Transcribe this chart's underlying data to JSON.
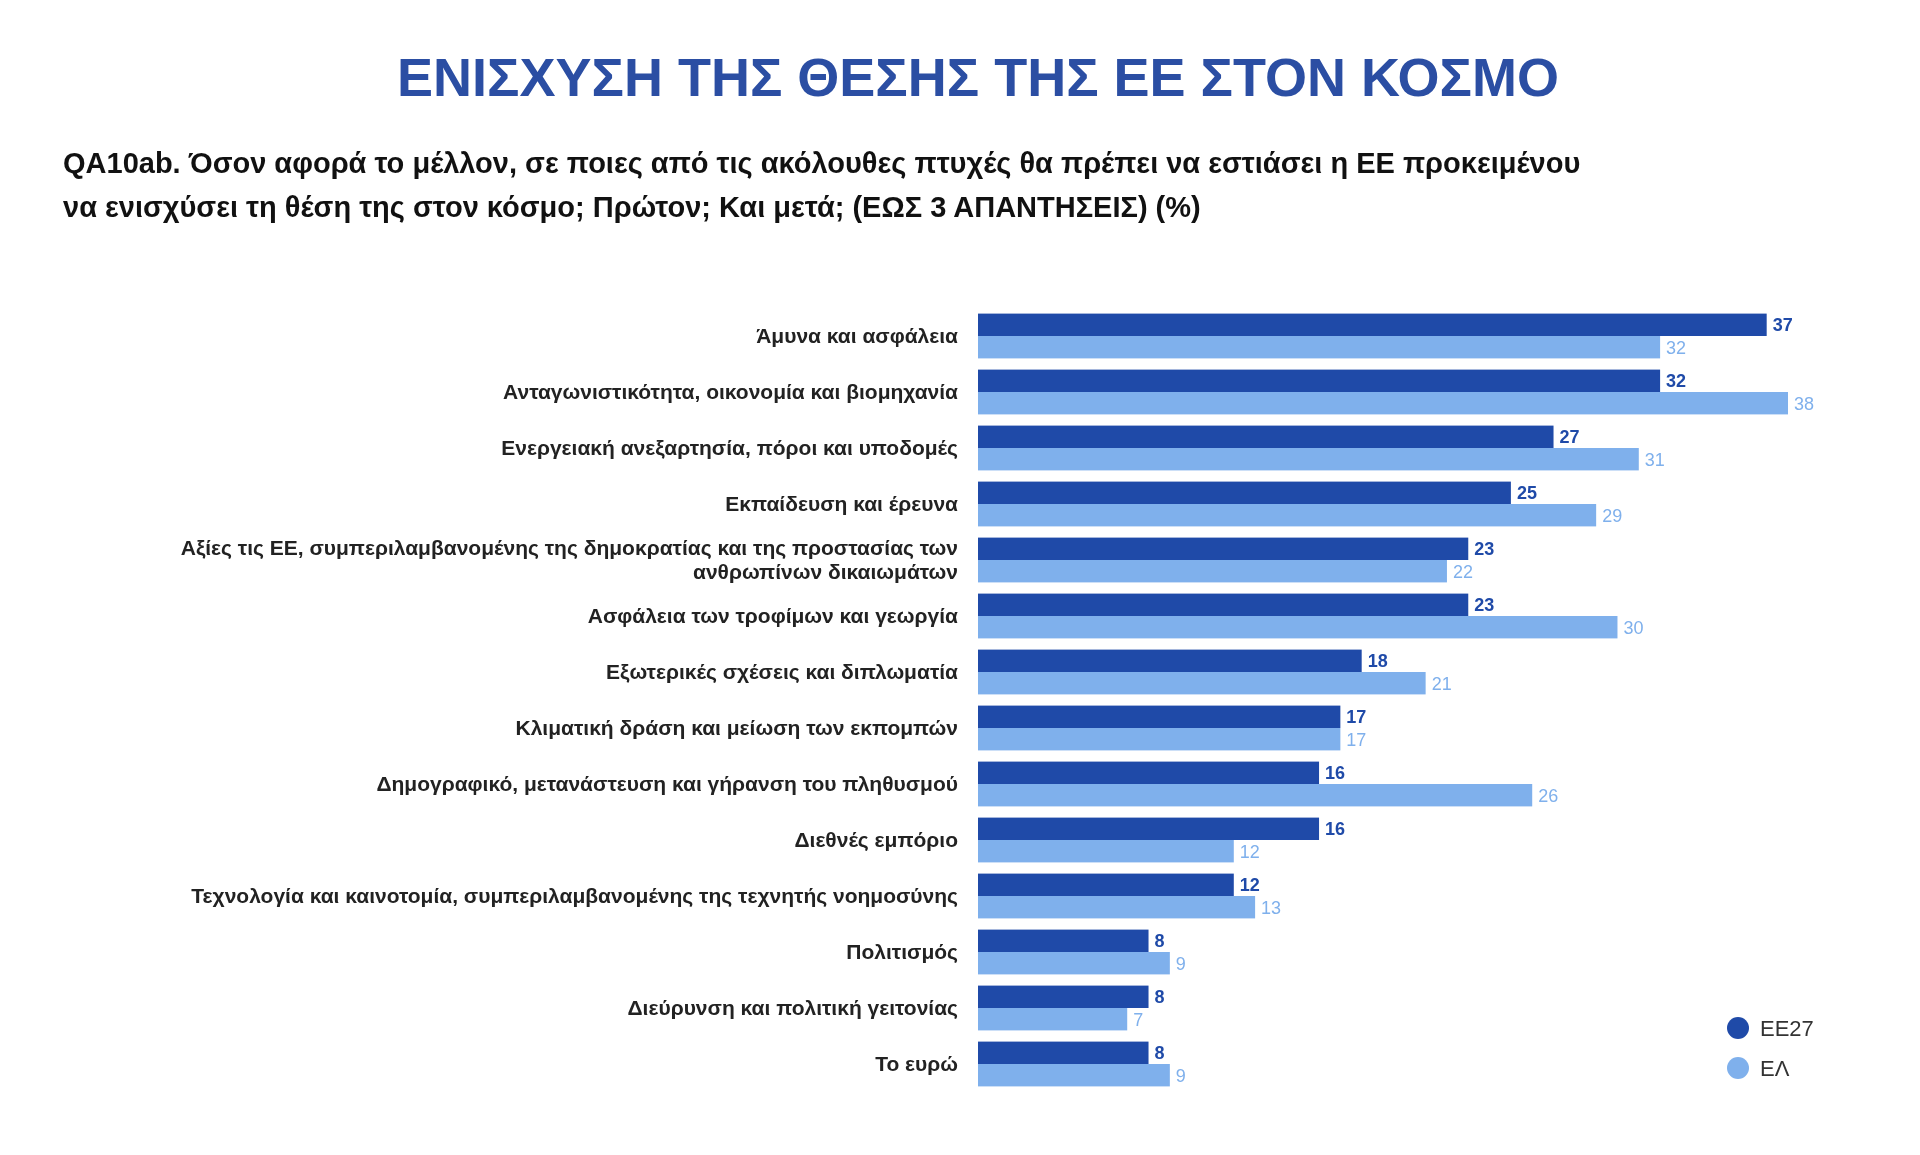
{
  "chart_data": {
    "type": "bar",
    "orientation": "horizontal",
    "title": "ΕΝΙΣΧΥΣΗ ΤΗΣ ΘΕΣΗΣ ΤΗΣ ΕΕ ΣΤΟΝ ΚΟΣΜΟ",
    "subtitle": "QA10ab. Όσον αφορά το μέλλον, σε ποιες από τις ακόλουθες πτυχές θα πρέπει να εστιάσει η ΕΕ προκειμένου να ενισχύσει τη θέση της στον κόσμο; Πρώτον; Και μετά; (ΕΩΣ 3 ΑΠΑΝΤΗΣΕΙΣ) (%)",
    "categories": [
      "Άμυνα και ασφάλεια",
      "Ανταγωνιστικότητα, οικονομία και βιομηχανία",
      "Ενεργειακή ανεξαρτησία, πόροι και υποδομές",
      "Εκπαίδευση και έρευνα",
      "Αξίες τις ΕΕ, συμπεριλαμβανομένης της δημοκρατίας και της προστασίας των ανθρωπίνων δικαιωμάτων",
      "Ασφάλεια των τροφίμων και γεωργία",
      "Εξωτερικές σχέσεις και διπλωματία",
      "Κλιματική δράση και μείωση των εκπομπών",
      "Δημογραφικό, μετανάστευση και γήρανση του πληθυσμού",
      "Διεθνές εμπόριο",
      "Τεχνολογία και καινοτομία, συμπεριλαμβανομένης της τεχνητής νοημοσύνης",
      "Πολιτισμός",
      "Διεύρυνση και πολιτική γειτονίας",
      "Το ευρώ"
    ],
    "series": [
      {
        "name": "ΕΕ27",
        "color": "#1f4aa8",
        "values": [
          37,
          32,
          27,
          25,
          23,
          23,
          18,
          17,
          16,
          16,
          12,
          8,
          8,
          8
        ]
      },
      {
        "name": "ΕΛ",
        "color": "#7fb0ec",
        "values": [
          32,
          38,
          31,
          29,
          22,
          30,
          21,
          17,
          26,
          12,
          13,
          9,
          7,
          9
        ]
      }
    ],
    "data_labels": true,
    "legend": "bottom right"
  }
}
